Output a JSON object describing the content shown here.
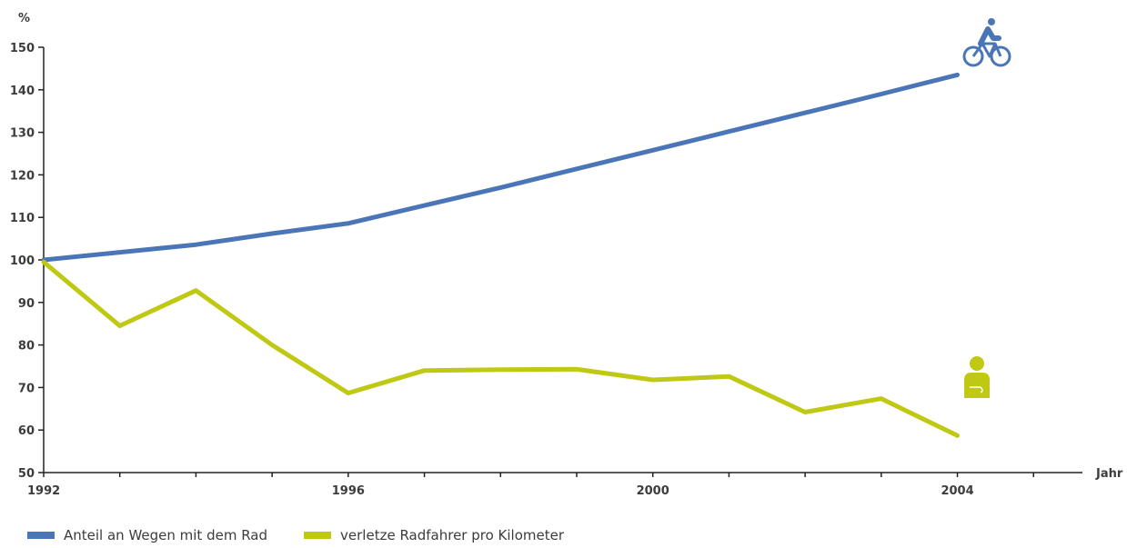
{
  "chart_data": {
    "type": "line",
    "y_unit_label": "%",
    "x_unit_label": "Jahr",
    "ylim": [
      50,
      150
    ],
    "y_ticks": [
      50,
      60,
      70,
      80,
      90,
      100,
      110,
      120,
      130,
      140,
      150
    ],
    "xlim": [
      1992,
      2006
    ],
    "x_ticks": [
      1992,
      1993,
      1994,
      1995,
      1996,
      1997,
      1998,
      1999,
      2000,
      2001,
      2002,
      2003,
      2004,
      2005,
      2006
    ],
    "x_tick_labels": [
      "1992",
      "",
      "",
      "",
      "1996",
      "",
      "",
      "",
      "2000",
      "",
      "",
      "",
      "2004",
      "",
      ""
    ],
    "grid": false,
    "legend_position": "bottom-left",
    "series": [
      {
        "name": "Anteil an Wegen mit dem Rad",
        "color": "#4a76b8",
        "icon": "bicycle-icon",
        "points": [
          [
            1992,
            100
          ],
          [
            1993,
            101.8
          ],
          [
            1994,
            103.6
          ],
          [
            1995,
            106.2
          ],
          [
            1996,
            108.6
          ],
          [
            1997,
            112.8
          ],
          [
            1998,
            117
          ],
          [
            1999,
            121.4
          ],
          [
            2000,
            125.8
          ],
          [
            2001,
            130.2
          ],
          [
            2002,
            134.6
          ],
          [
            2003,
            139
          ],
          [
            2004,
            143.5
          ]
        ]
      },
      {
        "name": "verletze Radfahrer pro Kilometer",
        "color": "#bfc913",
        "icon": "injured-person-icon",
        "points": [
          [
            1992,
            99.5
          ],
          [
            1993,
            84.5
          ],
          [
            1994,
            92.8
          ],
          [
            1995,
            80
          ],
          [
            1996,
            68.7
          ],
          [
            1997,
            74
          ],
          [
            1998,
            74.2
          ],
          [
            1999,
            74.3
          ],
          [
            2000,
            71.8
          ],
          [
            2001,
            72.6
          ],
          [
            2002,
            64.2
          ],
          [
            2003,
            67.4
          ],
          [
            2004,
            58.7
          ]
        ]
      }
    ]
  }
}
